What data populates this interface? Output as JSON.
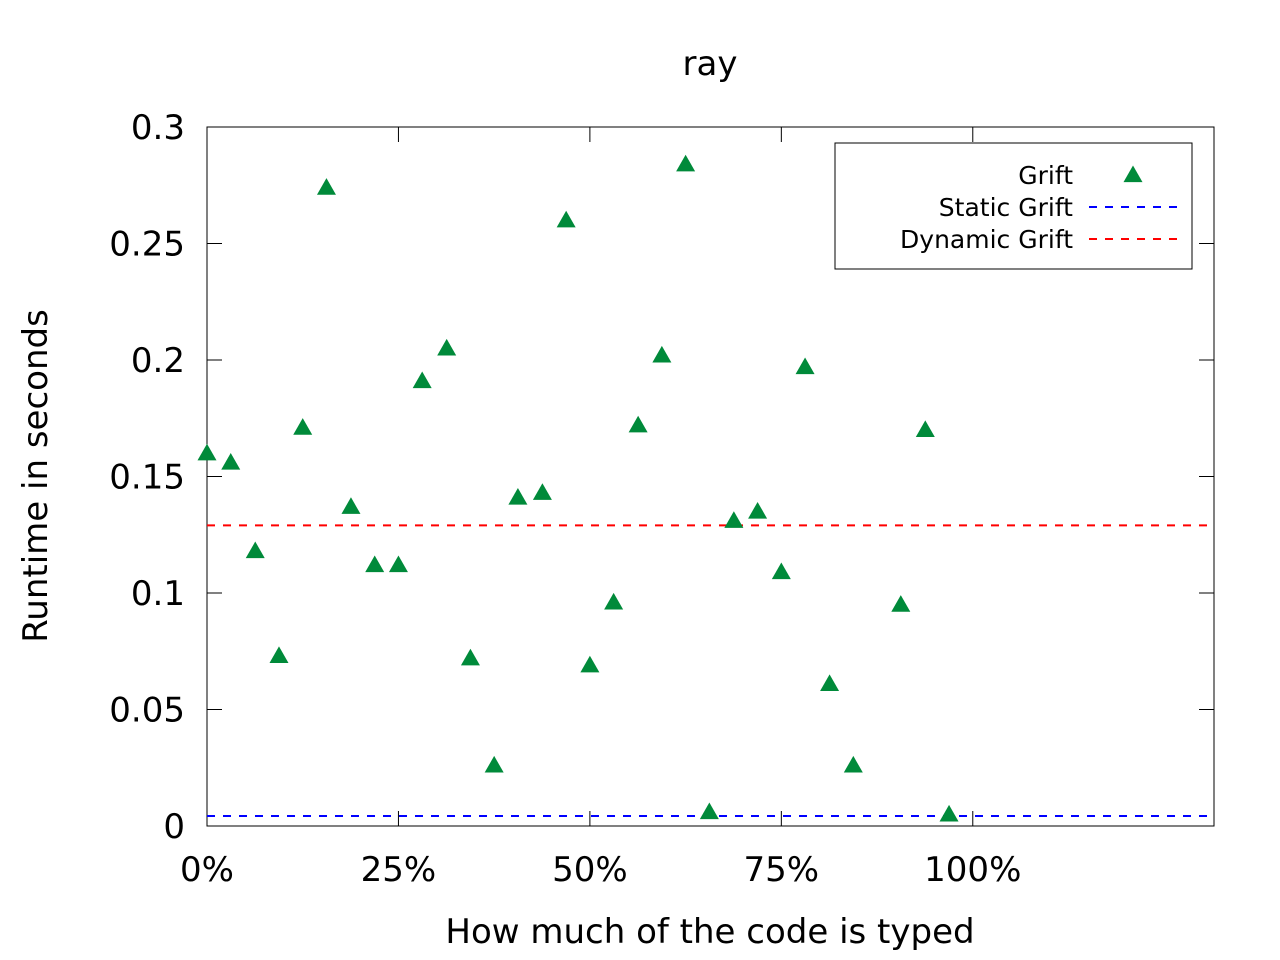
{
  "chart_data": {
    "type": "scatter",
    "title": "ray",
    "xlabel": "How much of the code is typed",
    "ylabel": "Runtime in seconds",
    "xlim": [
      0,
      131.5
    ],
    "ylim": [
      0,
      0.3
    ],
    "x_ticks": [
      {
        "value": 0,
        "label": "0%"
      },
      {
        "value": 25,
        "label": "25%"
      },
      {
        "value": 50,
        "label": "50%"
      },
      {
        "value": 75,
        "label": "75%"
      },
      {
        "value": 100,
        "label": "100%"
      }
    ],
    "y_ticks": [
      {
        "value": 0,
        "label": "0"
      },
      {
        "value": 0.05,
        "label": "0.05"
      },
      {
        "value": 0.1,
        "label": "0.1"
      },
      {
        "value": 0.15,
        "label": "0.15"
      },
      {
        "value": 0.2,
        "label": "0.2"
      },
      {
        "value": 0.25,
        "label": "0.25"
      },
      {
        "value": 0.3,
        "label": "0.3"
      }
    ],
    "grid": false,
    "legend_position": "top-right",
    "series": [
      {
        "name": "Grift",
        "kind": "points",
        "marker": "triangle",
        "color": "#008a3a",
        "points": [
          [
            0,
            0.16
          ],
          [
            3.1,
            0.156
          ],
          [
            6.3,
            0.118
          ],
          [
            9.4,
            0.073
          ],
          [
            12.5,
            0.171
          ],
          [
            15.6,
            0.274
          ],
          [
            18.8,
            0.137
          ],
          [
            21.9,
            0.112
          ],
          [
            25.0,
            0.112
          ],
          [
            28.1,
            0.191
          ],
          [
            31.3,
            0.205
          ],
          [
            34.4,
            0.072
          ],
          [
            37.5,
            0.026
          ],
          [
            40.6,
            0.141
          ],
          [
            43.8,
            0.143
          ],
          [
            46.9,
            0.26
          ],
          [
            50.0,
            0.069
          ],
          [
            53.1,
            0.096
          ],
          [
            56.3,
            0.172
          ],
          [
            59.4,
            0.202
          ],
          [
            62.5,
            0.284
          ],
          [
            65.6,
            0.006
          ],
          [
            68.8,
            0.131
          ],
          [
            71.9,
            0.135
          ],
          [
            75.0,
            0.109
          ],
          [
            78.1,
            0.197
          ],
          [
            81.3,
            0.061
          ],
          [
            84.4,
            0.026
          ],
          [
            90.6,
            0.095
          ],
          [
            93.8,
            0.17
          ],
          [
            96.9,
            0.005
          ]
        ]
      },
      {
        "name": "Static Grift",
        "kind": "hline",
        "y": 0.0043,
        "color": "#0000ff"
      },
      {
        "name": "Dynamic Grift",
        "kind": "hline",
        "y": 0.129,
        "color": "#ff0000"
      }
    ]
  }
}
